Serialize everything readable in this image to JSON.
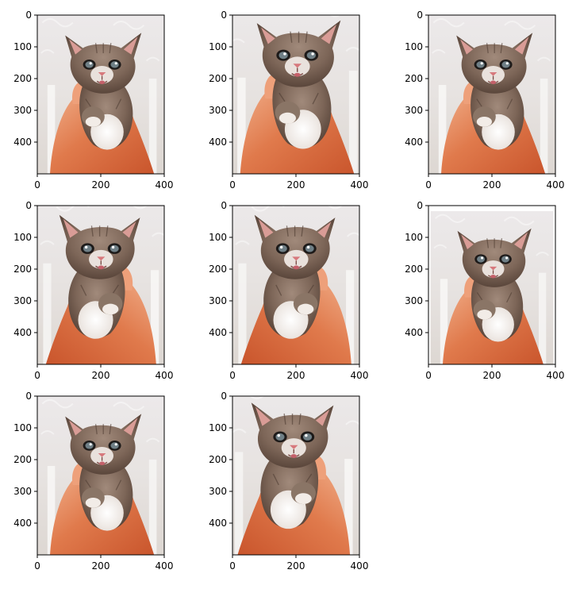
{
  "chart_data": {
    "type": "image-grid",
    "layout": {
      "rows": 3,
      "cols": 3
    },
    "image_subject": "kitten held in a hand",
    "panel_count": 8,
    "panels": [
      {
        "index": 1,
        "variant": "original"
      },
      {
        "index": 2,
        "variant": "augmented"
      },
      {
        "index": 3,
        "variant": "augmented"
      },
      {
        "index": 4,
        "variant": "augmented"
      },
      {
        "index": 5,
        "variant": "augmented"
      },
      {
        "index": 6,
        "variant": "augmented"
      },
      {
        "index": 7,
        "variant": "augmented"
      },
      {
        "index": 8,
        "variant": "augmented"
      }
    ],
    "x_ticks": [
      0,
      200,
      400
    ],
    "y_ticks": [
      0,
      100,
      200,
      300,
      400
    ],
    "xlim": [
      0,
      400
    ],
    "ylim": [
      0,
      500
    ],
    "y_inverted": true,
    "grid": false
  },
  "colors": {
    "axis": "#000000",
    "background": "#ffffff",
    "tick_label": "#000000"
  }
}
